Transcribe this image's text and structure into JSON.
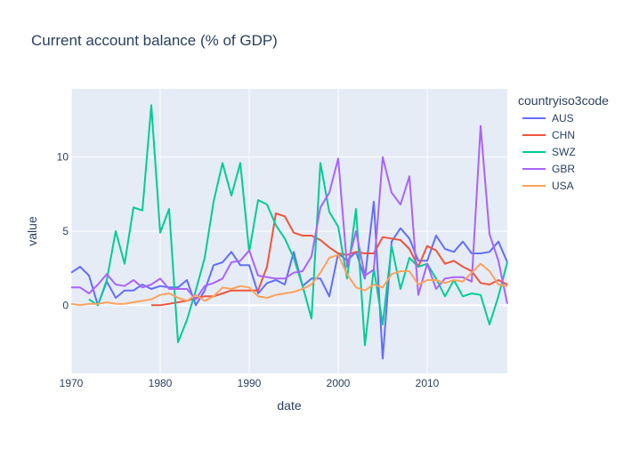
{
  "chart_data": {
    "type": "line",
    "title": "Current account balance (% of GDP)",
    "xlabel": "date",
    "ylabel": "value",
    "xlim": [
      1970,
      2019
    ],
    "ylim": [
      -4.6,
      14.6
    ],
    "x_ticks": [
      1970,
      1980,
      1990,
      2000,
      2010
    ],
    "y_ticks": [
      0,
      5,
      10
    ],
    "legend_title": "countryiso3code",
    "legend_position": "right",
    "grid": true,
    "background": "#E5ECF6",
    "x": [
      1970,
      1971,
      1972,
      1973,
      1974,
      1975,
      1976,
      1977,
      1978,
      1979,
      1980,
      1981,
      1982,
      1983,
      1984,
      1985,
      1986,
      1987,
      1988,
      1989,
      1990,
      1991,
      1992,
      1993,
      1994,
      1995,
      1996,
      1997,
      1998,
      1999,
      2000,
      2001,
      2002,
      2003,
      2004,
      2005,
      2006,
      2007,
      2008,
      2009,
      2010,
      2011,
      2012,
      2013,
      2014,
      2015,
      2016,
      2017,
      2018,
      2019
    ],
    "series": [
      {
        "name": "AUS",
        "color": "#636EFA",
        "values": [
          2.2,
          2.6,
          2.0,
          0.0,
          1.6,
          0.5,
          1.0,
          1.0,
          1.4,
          1.1,
          1.3,
          1.2,
          1.2,
          1.7,
          0.0,
          1.0,
          2.7,
          2.9,
          3.6,
          2.7,
          2.7,
          0.8,
          1.5,
          1.7,
          1.4,
          3.6,
          1.3,
          1.8,
          1.8,
          0.6,
          3.5,
          3.0,
          3.6,
          1.8,
          7.0,
          -3.6,
          4.3,
          5.2,
          4.5,
          3.0,
          3.0,
          4.7,
          3.8,
          3.6,
          4.3,
          3.5,
          3.5,
          3.6,
          4.3,
          2.9
        ]
      },
      {
        "name": "CHN",
        "color": "#EF553B",
        "values": [
          null,
          null,
          null,
          null,
          null,
          null,
          null,
          null,
          null,
          0.0,
          0.0,
          0.1,
          0.2,
          0.3,
          0.5,
          0.6,
          0.6,
          0.8,
          1.0,
          1.0,
          1.0,
          1.0,
          2.6,
          6.2,
          6.0,
          4.9,
          4.7,
          4.7,
          4.4,
          3.9,
          3.5,
          3.4,
          3.6,
          3.5,
          3.5,
          4.6,
          4.5,
          4.4,
          3.8,
          2.6,
          4.0,
          3.7,
          2.8,
          3.0,
          2.6,
          2.3,
          1.5,
          1.4,
          1.7,
          1.4
        ]
      },
      {
        "name": "SWZ",
        "color": "#00CC96",
        "values": [
          null,
          null,
          0.4,
          0.0,
          1.7,
          5.0,
          2.8,
          6.6,
          6.4,
          13.5,
          4.9,
          6.5,
          -2.5,
          -1.0,
          1.0,
          3.2,
          7.0,
          9.6,
          7.4,
          9.6,
          3.6,
          7.1,
          6.8,
          5.4,
          4.5,
          3.2,
          1.3,
          -0.9,
          9.6,
          6.3,
          5.3,
          1.8,
          6.5,
          -2.7,
          2.5,
          -1.3,
          4.0,
          1.1,
          3.2,
          2.6,
          2.8,
          1.8,
          0.6,
          1.7,
          0.6,
          0.8,
          0.7,
          -1.3,
          0.6,
          2.9
        ]
      },
      {
        "name": "GBR",
        "color": "#AB63FA",
        "values": [
          1.2,
          1.2,
          0.8,
          1.4,
          2.1,
          1.4,
          1.3,
          1.7,
          1.2,
          1.4,
          1.8,
          1.1,
          1.1,
          1.1,
          0.4,
          1.3,
          1.5,
          1.8,
          2.9,
          3.0,
          3.7,
          2.0,
          1.9,
          1.8,
          1.8,
          2.2,
          2.3,
          3.3,
          6.6,
          7.6,
          9.9,
          2.6,
          5.0,
          2.0,
          2.4,
          10.0,
          7.6,
          6.8,
          8.7,
          0.7,
          2.8,
          1.1,
          1.8,
          1.9,
          1.9,
          1.6,
          12.1,
          4.8,
          3.0,
          0.1
        ]
      },
      {
        "name": "USA",
        "color": "#FFA15A",
        "values": [
          0.1,
          0.0,
          0.1,
          0.1,
          0.2,
          0.1,
          0.1,
          0.2,
          0.3,
          0.4,
          0.7,
          0.8,
          0.5,
          0.3,
          0.7,
          0.3,
          0.6,
          1.2,
          1.1,
          1.3,
          1.2,
          0.6,
          0.5,
          0.7,
          0.8,
          0.9,
          1.1,
          1.4,
          2.2,
          3.2,
          3.4,
          2.1,
          1.2,
          1.0,
          1.4,
          1.2,
          2.1,
          2.3,
          2.3,
          1.4,
          1.7,
          1.7,
          1.5,
          1.7,
          1.6,
          2.2,
          2.8,
          2.3,
          1.4,
          1.3
        ]
      }
    ]
  }
}
